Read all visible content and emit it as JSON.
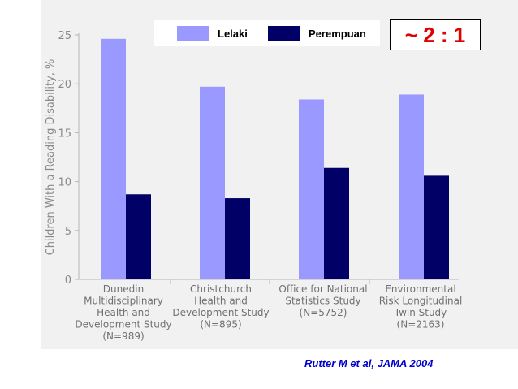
{
  "legend": {
    "male_label": "Lelaki",
    "female_label": "Perempuan"
  },
  "ratio_text": "~ 2 : 1",
  "citation": "Rutter M et al, JAMA 2004",
  "colors": {
    "male": "#9999ff",
    "female": "#000066",
    "ratio": "#e00000",
    "citation": "#0000cc"
  },
  "chart_data": {
    "type": "bar",
    "ylabel": "Children With a Reading Disability, %",
    "xlabel": "",
    "ylim": [
      0,
      25
    ],
    "yticks": [
      0,
      5,
      10,
      15,
      20,
      25
    ],
    "categories": [
      "Dunedin Multidisciplinary Health and Development Study (N=989)",
      "Christchurch Health and Development Study (N=895)",
      "Office for National Statistics Study (N=5752)",
      "Environmental Risk Longitudinal Twin Study (N=2163)"
    ],
    "category_lines": [
      [
        "Dunedin",
        "Multidisciplinary",
        "Health and",
        "Development Study",
        "(N=989)"
      ],
      [
        "Christchurch",
        "Health and",
        "Development Study",
        "(N=895)"
      ],
      [
        "Office for National",
        "Statistics Study",
        "(N=5752)"
      ],
      [
        "Environmental",
        "Risk Longitudinal",
        "Twin Study",
        "(N=2163)"
      ]
    ],
    "series": [
      {
        "name": "Lelaki",
        "values": [
          24.6,
          19.7,
          18.4,
          18.9
        ]
      },
      {
        "name": "Perempuan",
        "values": [
          8.7,
          8.3,
          11.4,
          10.6
        ]
      }
    ],
    "grid": false,
    "legend_position": "top"
  }
}
